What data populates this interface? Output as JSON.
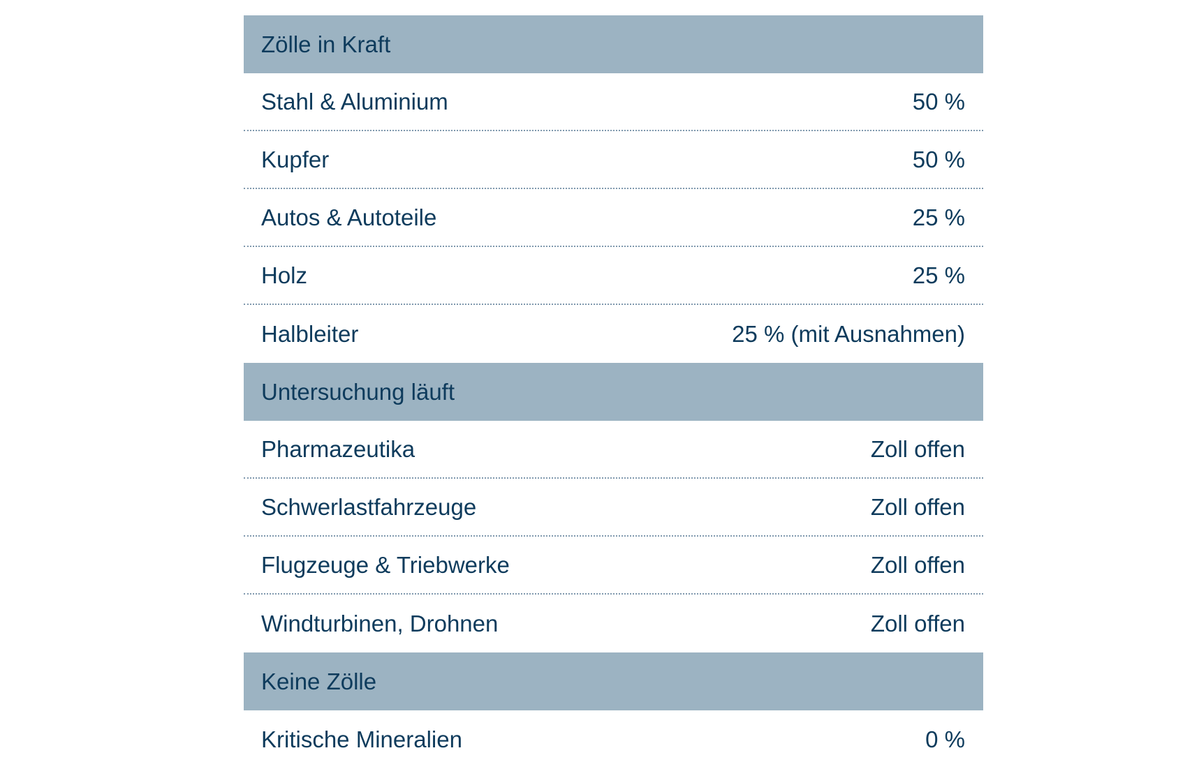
{
  "sections": [
    {
      "title": "Zölle in Kraft",
      "rows": [
        {
          "label": "Stahl & Aluminium",
          "value": "50 %"
        },
        {
          "label": "Kupfer",
          "value": "50 %"
        },
        {
          "label": "Autos & Autoteile",
          "value": "25 %"
        },
        {
          "label": "Holz",
          "value": "25 %"
        },
        {
          "label": "Halbleiter",
          "value": "25 % (mit Ausnahmen)"
        }
      ]
    },
    {
      "title": "Untersuchung läuft",
      "rows": [
        {
          "label": "Pharmazeutika",
          "value": "Zoll offen"
        },
        {
          "label": "Schwerlastfahrzeuge",
          "value": "Zoll offen"
        },
        {
          "label": "Flugzeuge & Triebwerke",
          "value": "Zoll offen"
        },
        {
          "label": "Windturbinen, Drohnen",
          "value": "Zoll offen"
        }
      ]
    },
    {
      "title": "Keine Zölle",
      "rows": [
        {
          "label": "Kritische Mineralien",
          "value": "0 %"
        }
      ]
    }
  ]
}
